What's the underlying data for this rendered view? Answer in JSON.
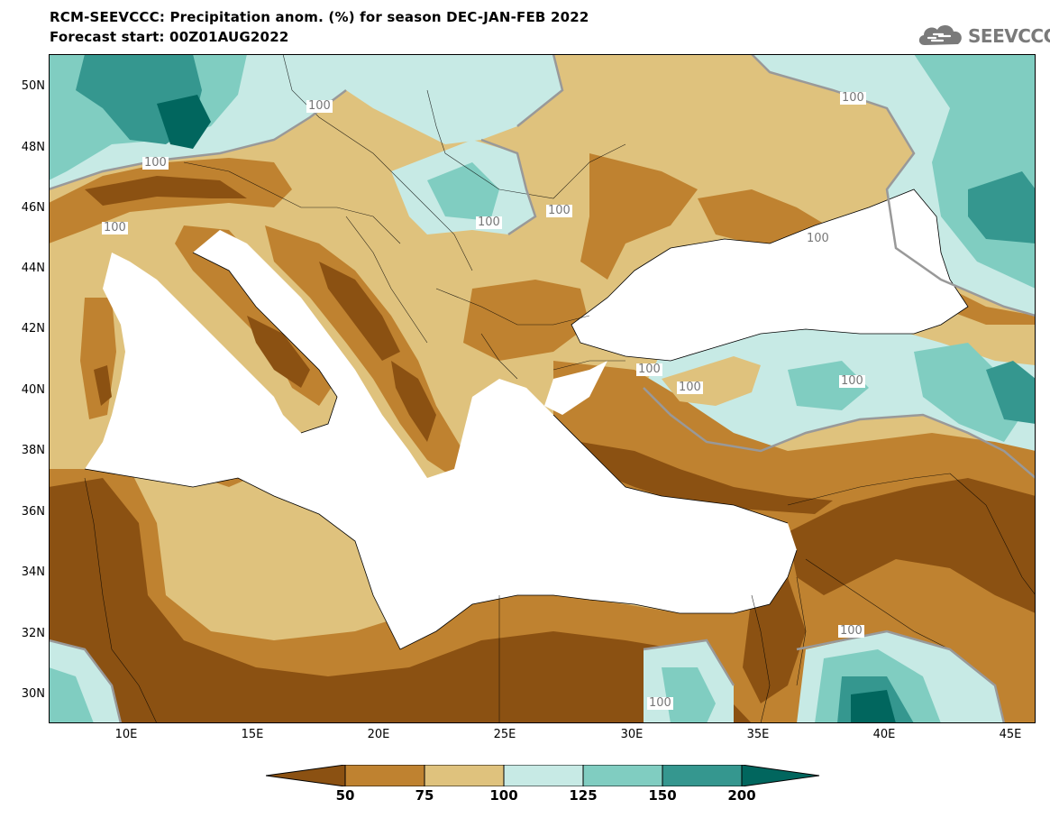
{
  "header": {
    "title": "RCM-SEEVCCC: Precipitation anom. (%) for season DEC-JAN-FEB 2022",
    "subtitle": "Forecast start: 00Z01AUG2022"
  },
  "logo": {
    "text": "SEEVCCC",
    "icon": "cloud-icon"
  },
  "axes": {
    "lat_labels": [
      "50N",
      "48N",
      "46N",
      "44N",
      "42N",
      "40N",
      "38N",
      "36N",
      "34N",
      "32N",
      "30N"
    ],
    "lon_labels": [
      "10E",
      "15E",
      "20E",
      "25E",
      "30E",
      "35E",
      "40E",
      "45E"
    ]
  },
  "contour_label_text": "100",
  "colorbar": {
    "ticks": [
      "50",
      "75",
      "100",
      "125",
      "150",
      "200"
    ],
    "colors": [
      "#8b5112",
      "#bf8230",
      "#dfc27d",
      "#c7eae5",
      "#80cdc1",
      "#35978f",
      "#01665e"
    ]
  },
  "chart_data": {
    "type": "heatmap",
    "title": "RCM-SEEVCCC: Precipitation anom. (%) for season DEC-JAN-FEB 2022",
    "subtitle": "Forecast start: 00Z01AUG2022",
    "xlabel": "",
    "ylabel": "",
    "x_ticks": [
      "10E",
      "15E",
      "20E",
      "25E",
      "30E",
      "35E",
      "40E",
      "45E"
    ],
    "y_ticks": [
      "50N",
      "48N",
      "46N",
      "44N",
      "42N",
      "40N",
      "38N",
      "36N",
      "34N",
      "32N",
      "30N"
    ],
    "xlim": [
      7,
      46
    ],
    "ylim": [
      29,
      51
    ],
    "levels": [
      50,
      75,
      100,
      125,
      150,
      200
    ],
    "contour_labels": [
      {
        "lon": 18.5,
        "lat": 49.3,
        "value": "100"
      },
      {
        "lon": 11.5,
        "lat": 47.4,
        "value": "100"
      },
      {
        "lon": 9.4,
        "lat": 45.3,
        "value": "100"
      },
      {
        "lon": 22.9,
        "lat": 45.6,
        "value": "100"
      },
      {
        "lon": 26.2,
        "lat": 45.9,
        "value": "100"
      },
      {
        "lon": 39.0,
        "lat": 50.0,
        "value": "100"
      },
      {
        "lon": 37.2,
        "lat": 45.0,
        "value": "100"
      },
      {
        "lon": 30.7,
        "lat": 40.6,
        "value": "100"
      },
      {
        "lon": 33.2,
        "lat": 40.0,
        "value": "100"
      },
      {
        "lon": 39.0,
        "lat": 40.2,
        "value": "100"
      },
      {
        "lon": 39.0,
        "lat": 32.0,
        "value": "100"
      },
      {
        "lon": 30.2,
        "lat": 29.8,
        "value": "100"
      }
    ]
  }
}
